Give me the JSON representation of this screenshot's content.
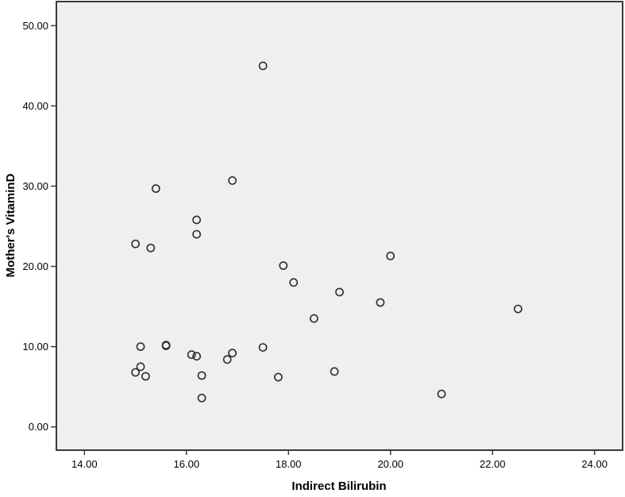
{
  "chart_data": {
    "type": "scatter",
    "title": "",
    "xlabel": "Indirect Bilirubin",
    "ylabel": "Mother's VitaminD",
    "xlim": [
      13.45,
      24.55
    ],
    "ylim": [
      -2.9,
      53.0
    ],
    "x_ticks": [
      14,
      16,
      18,
      20,
      22,
      24
    ],
    "y_ticks": [
      0,
      10,
      20,
      30,
      40,
      50
    ],
    "x_tick_labels": [
      "14.00",
      "16.00",
      "18.00",
      "20.00",
      "22.00",
      "24.00"
    ],
    "y_tick_labels": [
      "0.00",
      "10.00",
      "20.00",
      "30.00",
      "40.00",
      "50.00"
    ],
    "grid": false,
    "legend": false,
    "marker": "open-circle",
    "points": [
      [
        17.5,
        45.0
      ],
      [
        16.9,
        30.7
      ],
      [
        15.4,
        29.7
      ],
      [
        16.2,
        25.8
      ],
      [
        16.2,
        24.0
      ],
      [
        15.0,
        22.8
      ],
      [
        15.3,
        22.3
      ],
      [
        20.0,
        21.3
      ],
      [
        17.9,
        20.1
      ],
      [
        18.1,
        18.0
      ],
      [
        19.0,
        16.8
      ],
      [
        19.8,
        15.5
      ],
      [
        18.5,
        13.5
      ],
      [
        22.5,
        14.7
      ],
      [
        15.1,
        10.0
      ],
      [
        15.6,
        10.2
      ],
      [
        15.6,
        10.1
      ],
      [
        16.1,
        9.0
      ],
      [
        16.2,
        8.8
      ],
      [
        16.8,
        8.4
      ],
      [
        16.9,
        9.2
      ],
      [
        17.5,
        9.9
      ],
      [
        18.9,
        6.9
      ],
      [
        15.0,
        6.8
      ],
      [
        15.1,
        7.5
      ],
      [
        15.2,
        6.3
      ],
      [
        16.3,
        6.4
      ],
      [
        17.8,
        6.2
      ],
      [
        16.3,
        3.6
      ],
      [
        21.0,
        4.1
      ]
    ]
  },
  "colors": {
    "outer_bg": "#ffffff",
    "plot_bg": "#efefef",
    "frame": "#3a3a3a",
    "marker": "#2e2e2e",
    "text": "#000000"
  }
}
